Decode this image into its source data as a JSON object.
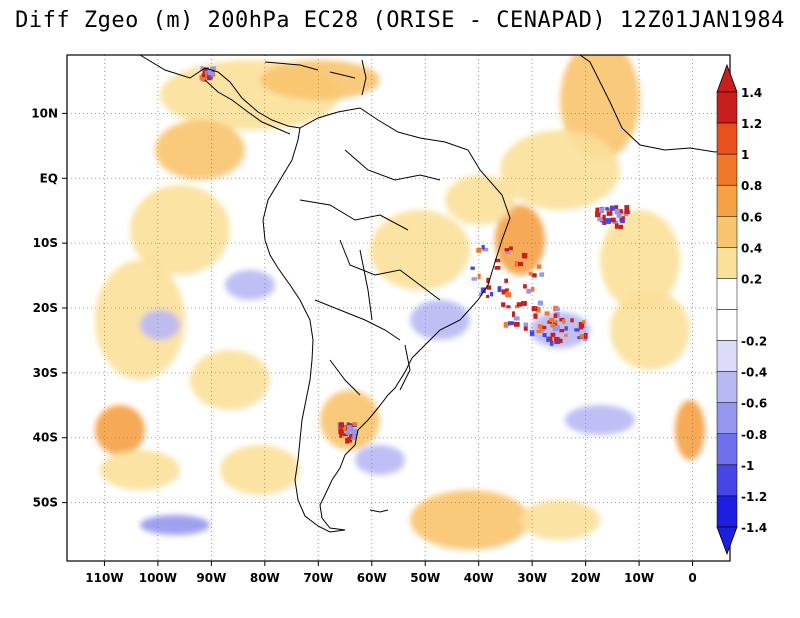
{
  "title": "Diff Zgeo (m) 200hPa EC28 (ORISE - CENAPAD) 12Z01JAN1984",
  "map": {
    "x_tick_labels": [
      "110W",
      "100W",
      "90W",
      "80W",
      "70W",
      "60W",
      "50W",
      "40W",
      "30W",
      "20W",
      "10W",
      "0"
    ],
    "x_tick_lons": [
      -110,
      -100,
      -90,
      -80,
      -70,
      -60,
      -50,
      -40,
      -30,
      -20,
      -10,
      0
    ],
    "y_tick_labels": [
      "10N",
      "EQ",
      "10S",
      "20S",
      "30S",
      "40S",
      "50S"
    ],
    "y_tick_lats": [
      10,
      0,
      -10,
      -20,
      -30,
      -40,
      -50
    ],
    "lon_range": [
      -117,
      7
    ],
    "lat_range": [
      -59,
      19
    ],
    "grid": "dotted",
    "fill_background": "#ffffff",
    "coastline_color": "#000000"
  },
  "colorbar": {
    "labels": [
      "1.4",
      "1.2",
      "1",
      "0.8",
      "0.6",
      "0.4",
      "0.2",
      "-0.2",
      "-0.4",
      "-0.6",
      "-0.8",
      "-1",
      "-1.2",
      "-1.4"
    ],
    "colors": [
      "#c81e1e",
      "#e8501e",
      "#f07828",
      "#f5a043",
      "#f8c46e",
      "#fbe09a",
      "#ffffff",
      "#ffffff",
      "#dcdcfa",
      "#b8b8f5",
      "#9696f0",
      "#7070ec",
      "#4646e6",
      "#1e1ee0"
    ],
    "top_arrow_color": "#c81e1e",
    "bottom_arrow_color": "#1e1ee0",
    "placement": "right"
  }
}
